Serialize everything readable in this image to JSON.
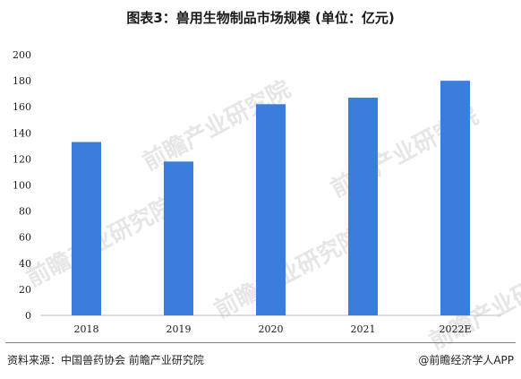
{
  "title": "图表3：兽用生物制品市场规模 (单位：亿元)",
  "source": "资料来源：中国兽药协会 前瞻产业研究院",
  "credit": "@前瞻经济学人APP",
  "watermark": "前瞻产业研究院",
  "colors": {
    "bar": "#3b7ddd",
    "axis": "#bfbfbf",
    "text": "#1a1a1a"
  },
  "chart_data": {
    "type": "bar",
    "categories": [
      "2018",
      "2019",
      "2020",
      "2021",
      "2022E"
    ],
    "values": [
      133,
      118,
      162,
      167,
      180
    ],
    "ylim": [
      0,
      200
    ],
    "yticks": [
      0,
      20,
      40,
      60,
      80,
      100,
      120,
      140,
      160,
      180,
      200
    ],
    "xlabel": "",
    "ylabel": "",
    "grid": false,
    "legend": "none"
  }
}
